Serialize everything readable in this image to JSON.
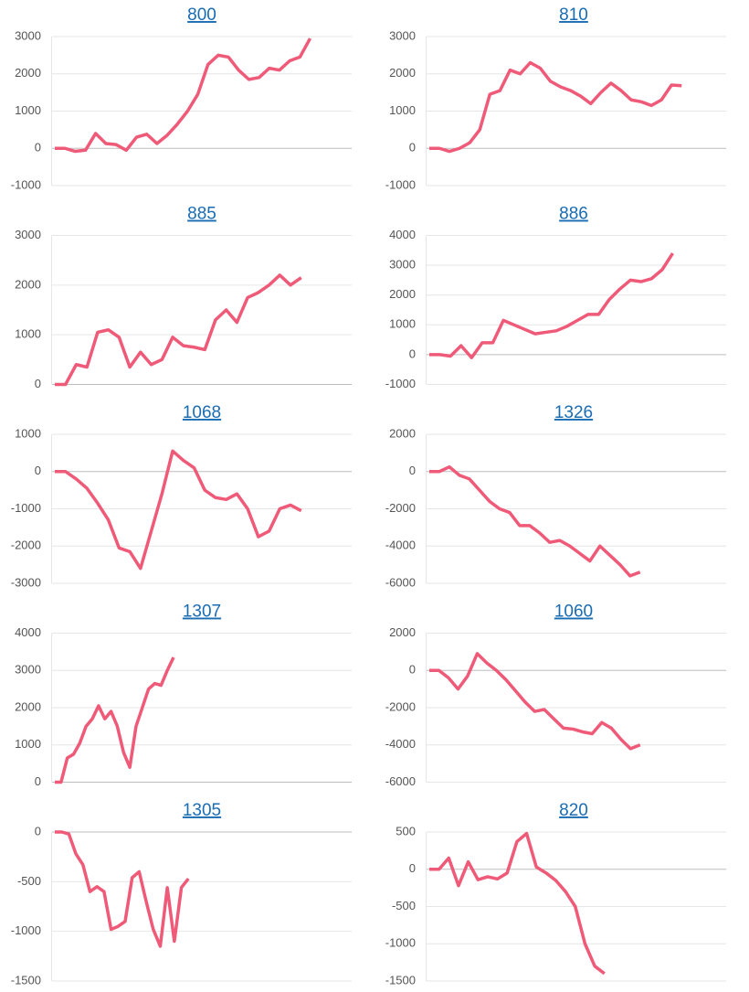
{
  "chart_data": [
    {
      "type": "line",
      "title": "800",
      "color": "#ef5a78",
      "grid": true,
      "ylim": [
        -1000,
        3000
      ],
      "yticks": [
        -1000,
        0,
        1000,
        2000,
        3000
      ],
      "values": [
        0,
        0,
        -80,
        -50,
        400,
        130,
        100,
        -50,
        300,
        380,
        130,
        350,
        650,
        1000,
        1450,
        2250,
        2500,
        2450,
        2100,
        1850,
        1900,
        2150,
        2100,
        2350,
        2450,
        2950
      ]
    },
    {
      "type": "line",
      "title": "810",
      "color": "#ef5a78",
      "grid": true,
      "ylim": [
        -1000,
        3000
      ],
      "yticks": [
        -1000,
        0,
        1000,
        2000,
        3000
      ],
      "values": [
        0,
        0,
        -80,
        0,
        150,
        500,
        1450,
        1550,
        2100,
        2000,
        2300,
        2150,
        1800,
        1650,
        1550,
        1400,
        1200,
        1500,
        1750,
        1550,
        1300,
        1250,
        1150,
        1300,
        1700,
        1680
      ]
    },
    {
      "type": "line",
      "title": "885",
      "color": "#ef5a78",
      "grid": true,
      "ylim": [
        0,
        3000
      ],
      "yticks": [
        0,
        1000,
        2000,
        3000
      ],
      "values": [
        0,
        0,
        400,
        350,
        1050,
        1100,
        950,
        350,
        650,
        400,
        500,
        950,
        780,
        750,
        700,
        1300,
        1500,
        1250,
        1750,
        1850,
        2000,
        2200,
        2000,
        2150
      ]
    },
    {
      "type": "line",
      "title": "886",
      "color": "#ef5a78",
      "grid": true,
      "ylim": [
        -1000,
        4000
      ],
      "yticks": [
        -1000,
        0,
        1000,
        2000,
        3000,
        4000
      ],
      "values": [
        0,
        0,
        -50,
        300,
        -100,
        400,
        400,
        1150,
        1000,
        850,
        700,
        750,
        800,
        950,
        1150,
        1350,
        1350,
        1850,
        2200,
        2500,
        2450,
        2550,
        2850,
        3400
      ]
    },
    {
      "type": "line",
      "title": "1068",
      "color": "#ef5a78",
      "grid": true,
      "ylim": [
        -3000,
        1000
      ],
      "yticks": [
        -3000,
        -2000,
        -1000,
        0,
        1000
      ],
      "values": [
        0,
        0,
        -200,
        -450,
        -850,
        -1300,
        -2050,
        -2150,
        -2600,
        -1600,
        -600,
        550,
        300,
        100,
        -500,
        -700,
        -750,
        -600,
        -1000,
        -1750,
        -1600,
        -1000,
        -900,
        -1050
      ]
    },
    {
      "type": "line",
      "title": "1326",
      "color": "#ef5a78",
      "grid": true,
      "ylim": [
        -6000,
        2000
      ],
      "yticks": [
        -6000,
        -4000,
        -2000,
        0,
        2000
      ],
      "values": [
        0,
        0,
        250,
        -200,
        -400,
        -1000,
        -1600,
        -2000,
        -2200,
        -2900,
        -2900,
        -3300,
        -3800,
        -3700,
        -4000,
        -4400,
        -4800,
        -4000,
        -4500,
        -5000,
        -5600,
        -5400
      ]
    },
    {
      "type": "line",
      "title": "1307",
      "color": "#ef5a78",
      "grid": true,
      "ylim": [
        0,
        4000
      ],
      "yticks": [
        0,
        1000,
        2000,
        3000,
        4000
      ],
      "values": [
        0,
        0,
        650,
        750,
        1050,
        1500,
        1700,
        2050,
        1700,
        1900,
        1500,
        800,
        400,
        1500,
        2000,
        2500,
        2650,
        2600,
        3000,
        3350
      ]
    },
    {
      "type": "line",
      "title": "1060",
      "color": "#ef5a78",
      "grid": true,
      "ylim": [
        -6000,
        2000
      ],
      "yticks": [
        -6000,
        -4000,
        -2000,
        0,
        2000
      ],
      "values": [
        0,
        0,
        -400,
        -1000,
        -300,
        900,
        400,
        0,
        -500,
        -1100,
        -1700,
        -2200,
        -2100,
        -2600,
        -3100,
        -3150,
        -3300,
        -3400,
        -2800,
        -3100,
        -3700,
        -4200,
        -4000
      ]
    },
    {
      "type": "line",
      "title": "1305",
      "color": "#ef5a78",
      "grid": true,
      "ylim": [
        -1500,
        0
      ],
      "yticks": [
        -1500,
        -1000,
        -500,
        0
      ],
      "values": [
        0,
        0,
        -20,
        -220,
        -330,
        -600,
        -550,
        -600,
        -980,
        -950,
        -900,
        -460,
        -400,
        -700,
        -980,
        -1150,
        -560,
        -1100,
        -560,
        -470
      ]
    },
    {
      "type": "line",
      "title": "820",
      "color": "#ef5a78",
      "grid": true,
      "ylim": [
        -1500,
        500
      ],
      "yticks": [
        -1500,
        -1000,
        -500,
        0,
        500
      ],
      "values": [
        0,
        0,
        150,
        -220,
        100,
        -140,
        -100,
        -130,
        -50,
        370,
        480,
        30,
        -50,
        -150,
        -300,
        -500,
        -1000,
        -1300,
        -1400
      ]
    }
  ]
}
